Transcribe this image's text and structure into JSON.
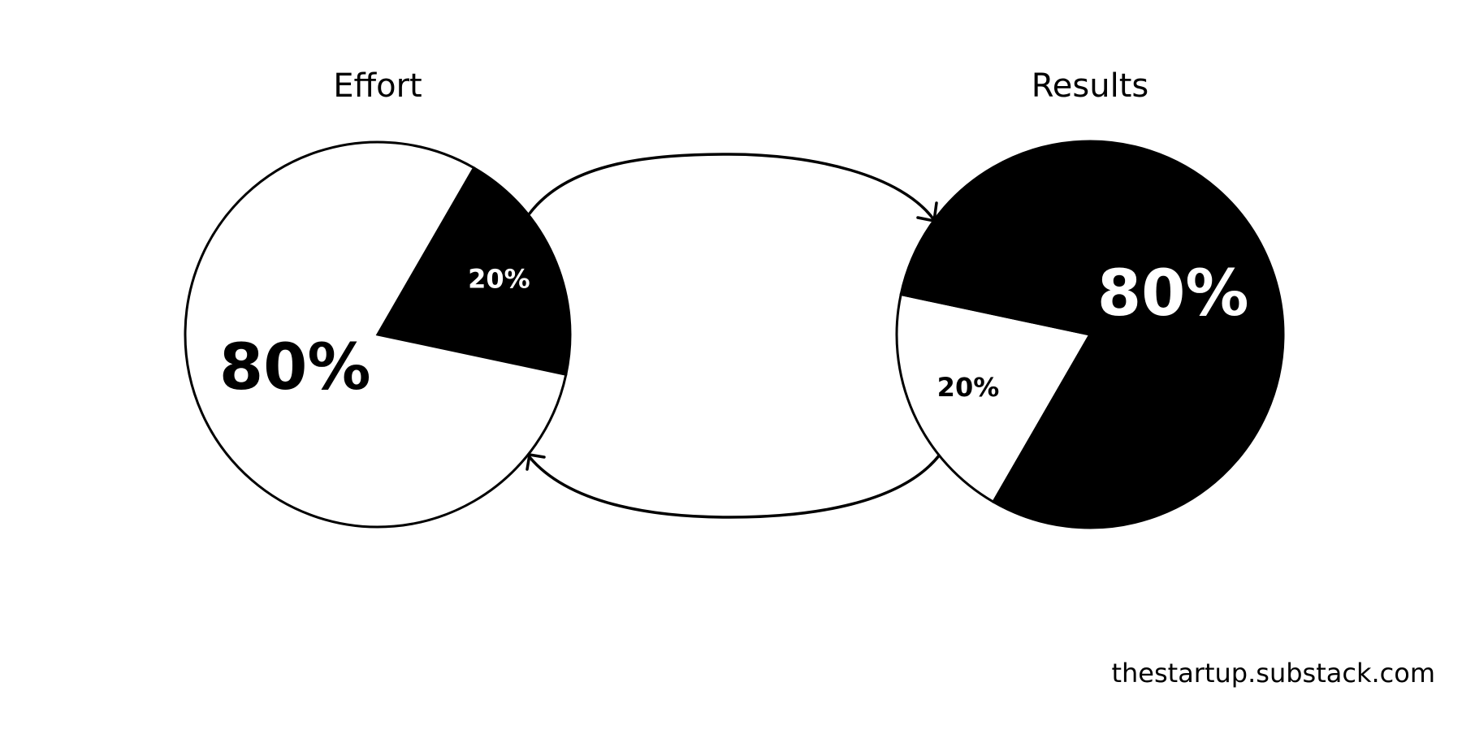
{
  "chart_data": [
    {
      "type": "pie",
      "title": "Effort",
      "values": [
        20,
        80
      ],
      "value_labels": [
        "20%",
        "80%"
      ],
      "colors": [
        "#000000",
        "#ffffff"
      ]
    },
    {
      "type": "pie",
      "title": "Results",
      "values": [
        20,
        80
      ],
      "value_labels": [
        "20%",
        "80%"
      ],
      "colors": [
        "#ffffff",
        "#000000"
      ]
    }
  ],
  "source": "thestartup.substack.com"
}
